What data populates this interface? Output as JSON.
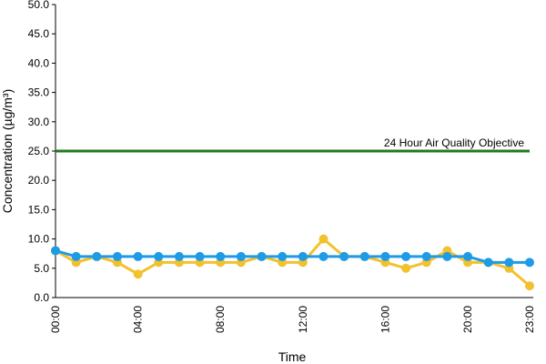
{
  "chart_data": {
    "type": "line",
    "x_label": "Time",
    "y_label": "Concentration (µg/m³)",
    "categories": [
      "00:00",
      null,
      null,
      null,
      "04:00",
      null,
      null,
      null,
      "08:00",
      null,
      null,
      null,
      "12:00",
      null,
      null,
      null,
      "16:00",
      null,
      null,
      null,
      "20:00",
      null,
      null,
      "23:00"
    ],
    "series": [
      {
        "color": "#f2c12e",
        "values": [
          8,
          6,
          7,
          6,
          4,
          6,
          6,
          6,
          6,
          6,
          7,
          6,
          6,
          10,
          7,
          7,
          6,
          5,
          6,
          8,
          6,
          6,
          5,
          2
        ]
      },
      {
        "color": "#1e9be6",
        "values": [
          8,
          7,
          7,
          7,
          7,
          7,
          7,
          7,
          7,
          7,
          7,
          7,
          7,
          7,
          7,
          7,
          7,
          7,
          7,
          7,
          7,
          6,
          6,
          6
        ]
      }
    ],
    "reference_lines": [
      {
        "value": 25,
        "label": "24 Hour Air Quality Objective",
        "color": "#1f7a1f"
      }
    ],
    "ylim": [
      0,
      50
    ],
    "yticks": [
      {
        "value": 0,
        "label": "0.0"
      },
      {
        "value": 5,
        "label": "5.0"
      },
      {
        "value": 10,
        "label": "10.0"
      },
      {
        "value": 15,
        "label": "15.0"
      },
      {
        "value": 20,
        "label": "20.0"
      },
      {
        "value": 25,
        "label": "25.0"
      },
      {
        "value": 30,
        "label": "30.0"
      },
      {
        "value": 35,
        "label": "35.0"
      },
      {
        "value": 40,
        "label": "40.0"
      },
      {
        "value": 45,
        "label": "45.0"
      },
      {
        "value": 50,
        "label": "50.0"
      }
    ]
  }
}
